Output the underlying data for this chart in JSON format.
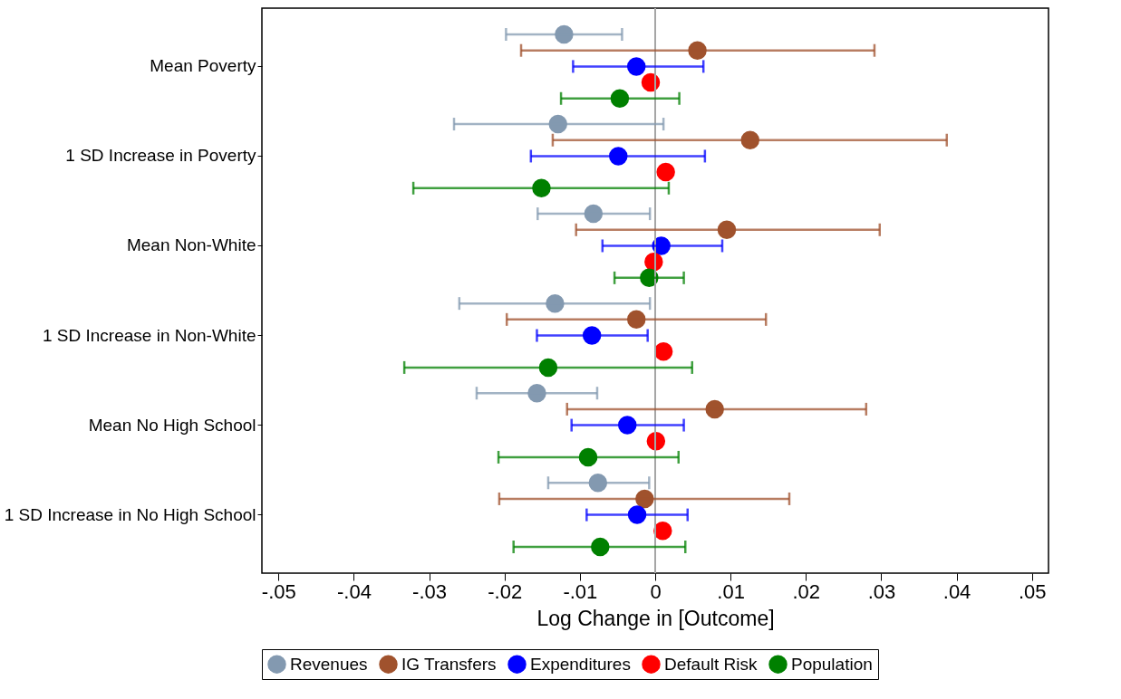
{
  "chart_data": {
    "type": "scatter",
    "orientation": "horizontal",
    "xlabel": "Log Change in [Outcome]",
    "marker": "circle",
    "legend": "bottom",
    "categories": [
      "Mean Poverty",
      "1 SD Increase in Poverty",
      "Mean Non-White",
      "1 SD Increase in Non-White",
      "Mean No High School",
      "1 SD Increase in No High School"
    ],
    "xlim": [
      -0.0522,
      0.0522
    ],
    "xticks": [
      {
        "value": -0.05,
        "label": "-.05"
      },
      {
        "value": -0.04,
        "label": "-.04"
      },
      {
        "value": -0.03,
        "label": "-.03"
      },
      {
        "value": -0.02,
        "label": "-.02"
      },
      {
        "value": -0.01,
        "label": "-.01"
      },
      0,
      {
        "value": 0.01,
        "label": ".01"
      },
      {
        "value": 0.02,
        "label": ".02"
      },
      {
        "value": 0.03,
        "label": ".03"
      },
      {
        "value": 0.04,
        "label": ".04"
      },
      {
        "value": 0.05,
        "label": ".05"
      }
    ],
    "ref_lines": [
      {
        "axis": "x",
        "value": 0,
        "color": "#a6a6a6"
      }
    ],
    "series": [
      {
        "name": "Revenues",
        "color": "#8399b0",
        "values": [
          -0.0121,
          -0.0129,
          -0.0082,
          -0.0133,
          -0.0157,
          -0.0076
        ],
        "errors": [
          [
            -0.0198,
            -0.0044
          ],
          [
            -0.0267,
            0.0011
          ],
          [
            -0.0156,
            -0.0007
          ],
          [
            -0.026,
            -0.0007
          ],
          [
            -0.0237,
            -0.0077
          ],
          [
            -0.0142,
            -0.0008
          ]
        ]
      },
      {
        "name": "IG Transfers",
        "color": "#a0522d",
        "values": [
          0.0056,
          0.0126,
          0.0095,
          -0.0025,
          0.0079,
          -0.0014
        ],
        "errors": [
          [
            -0.0178,
            0.0291
          ],
          [
            -0.0136,
            0.0387
          ],
          [
            -0.0105,
            0.0298
          ],
          [
            -0.0197,
            0.0147
          ],
          [
            -0.0117,
            0.028
          ],
          [
            -0.0207,
            0.0178
          ]
        ]
      },
      {
        "name": "Expenditures",
        "color": "#0000ff",
        "values": [
          -0.0025,
          -0.0049,
          0.0008,
          -0.0084,
          -0.0037,
          -0.0024
        ],
        "errors": [
          [
            -0.0109,
            0.0064
          ],
          [
            -0.0165,
            0.0066
          ],
          [
            -0.007,
            0.0089
          ],
          [
            -0.0157,
            -0.001
          ],
          [
            -0.0111,
            0.0038
          ],
          [
            -0.0091,
            0.0043
          ]
        ]
      },
      {
        "name": "Default Risk",
        "color": "#ff0000",
        "values": [
          -0.0006,
          0.0014,
          -0.0002,
          0.0011,
          0.0001,
          0.001
        ]
      },
      {
        "name": "Population",
        "color": "#008000",
        "values": [
          -0.0047,
          -0.0151,
          -0.0008,
          -0.0142,
          -0.0089,
          -0.0073
        ],
        "errors": [
          [
            -0.0125,
            0.0032
          ],
          [
            -0.0321,
            0.0018
          ],
          [
            -0.0054,
            0.0038
          ],
          [
            -0.0333,
            0.0049
          ],
          [
            -0.0208,
            0.0031
          ],
          [
            -0.0188,
            0.004
          ]
        ]
      }
    ]
  }
}
